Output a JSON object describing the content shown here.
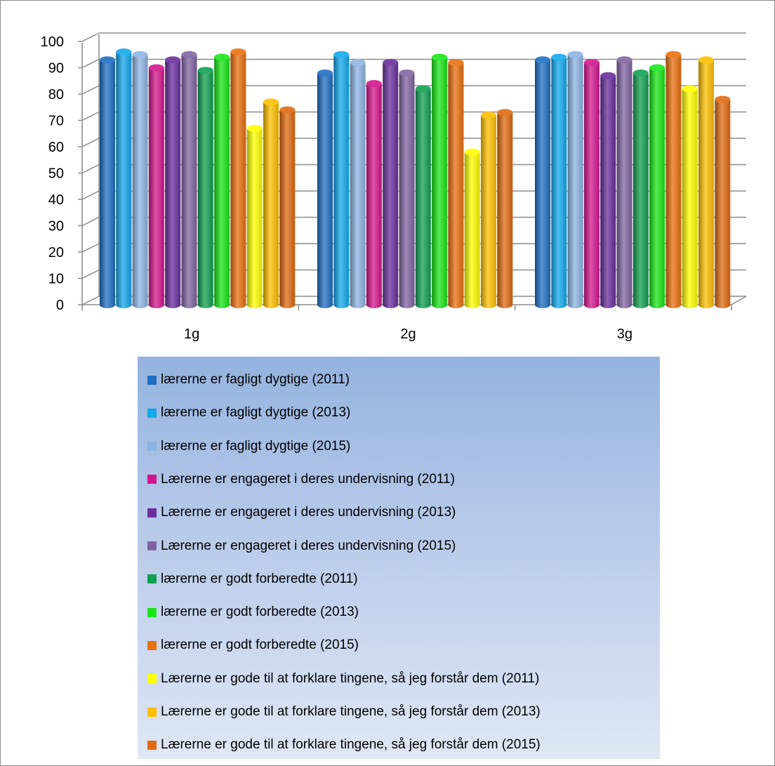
{
  "chart_data": {
    "type": "bar",
    "categories": [
      "1g",
      "2g",
      "3g"
    ],
    "y_ticks": [
      "0",
      "10",
      "20",
      "30",
      "40",
      "50",
      "60",
      "70",
      "80",
      "90",
      "100"
    ],
    "ylim": [
      0,
      100
    ],
    "grid": true,
    "legend_position": "bottom",
    "series": [
      {
        "name": "lærerne er fagligt dygtige (2011)",
        "color": "#1f6fc2",
        "values": [
          93,
          88,
          93
        ]
      },
      {
        "name": "lærerne er fagligt dygtige (2013)",
        "color": "#12a8ec",
        "values": [
          96,
          95,
          94
        ]
      },
      {
        "name": "lærerne er fagligt dygtige (2015)",
        "color": "#8db4e3",
        "values": [
          95,
          92,
          95
        ]
      },
      {
        "name": "Lærerne er engageret i deres undervisning (2011)",
        "color": "#d4158c",
        "values": [
          90,
          84,
          92
        ]
      },
      {
        "name": "Lærerne er engageret i deres undervisning (2013)",
        "color": "#6a2e9c",
        "values": [
          93,
          92,
          87
        ]
      },
      {
        "name": "Lærerne er engageret i deres undervisning (2015)",
        "color": "#8064a2",
        "values": [
          95,
          88,
          93
        ]
      },
      {
        "name": "lærerne er godt forberedte (2011)",
        "color": "#10a050",
        "values": [
          89,
          82,
          88
        ]
      },
      {
        "name": "lærerne er godt forberedte (2013)",
        "color": "#19e619",
        "values": [
          94,
          94,
          90
        ]
      },
      {
        "name": "lærerne er godt forberedte (2015)",
        "color": "#e8700f",
        "values": [
          96,
          92,
          95
        ]
      },
      {
        "name": "Lærerne er gode til at forklare tingene, så jeg forstår dem (2011)",
        "color": "#ffff00",
        "values": [
          67,
          58,
          82
        ]
      },
      {
        "name": "Lærerne er gode til at forklare tingene, så jeg forstår dem (2013)",
        "color": "#ffc000",
        "values": [
          77,
          72,
          93
        ]
      },
      {
        "name": "Lærerne er gode til at forklare tingene, så jeg forstår dem (2015)",
        "color": "#e06a10",
        "values": [
          74,
          73,
          78
        ]
      }
    ]
  }
}
